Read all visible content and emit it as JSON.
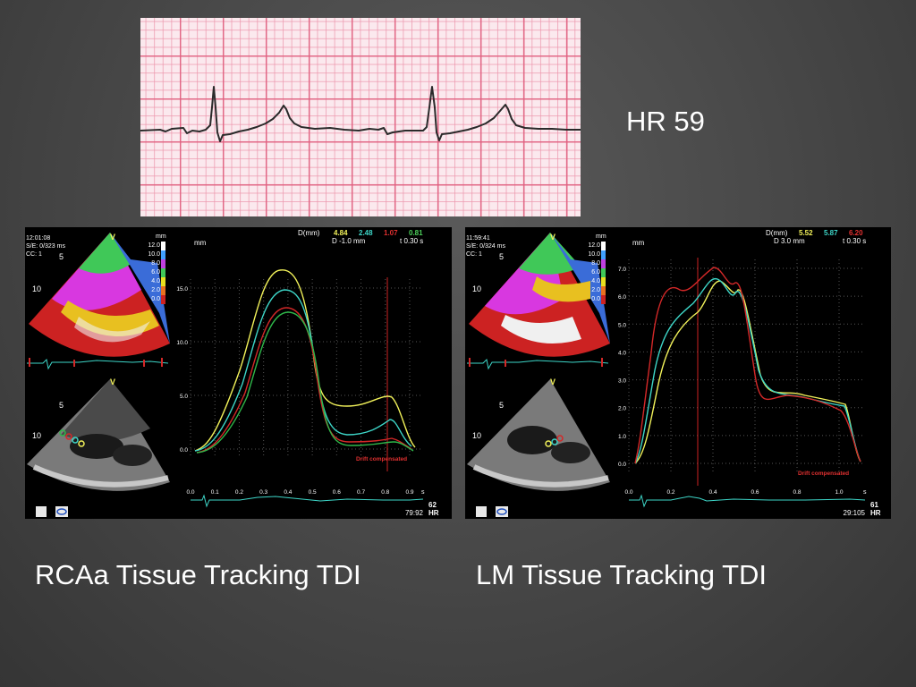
{
  "hr_label": "HR 59",
  "captions": {
    "left": "RCAa Tissue Tracking TDI",
    "right": "LM Tissue Tracking TDI"
  },
  "colors": {
    "background": "#4a4a4a",
    "ecg_paper": "#fbe9ee",
    "ecg_grid": "#e06080",
    "trace_yellow": "#f2f25a",
    "trace_cyan": "#3dd6c8",
    "trace_red": "#d42828",
    "trace_green": "#2fb84a"
  },
  "panels": [
    {
      "id": "rcaa",
      "time": "12:01:08",
      "se": "S/E: 0/323 ms",
      "cc": "CC: 1",
      "v_mark": "V",
      "depth_marks": [
        "5",
        "10"
      ],
      "color_scale_unit": "mm",
      "color_scale": [
        "12.0",
        "10.0",
        "8.0",
        "6.0",
        "4.0",
        "2.0",
        "0.0"
      ],
      "chart_unit": "mm",
      "d_label": "D(mm)",
      "d_values": [
        "4.84",
        "2.48",
        "1.07",
        "0.81"
      ],
      "d_value_colors": [
        "#f2f25a",
        "#3dd6c8",
        "#e03030",
        "#4ccf5a"
      ],
      "d_info": "D -1.0 mm",
      "t_info": "t 0.30 s",
      "drift": "Drift compensated",
      "y_ticks": [
        "15.0",
        "10.0",
        "5.0",
        "0.0"
      ],
      "x_ticks": [
        "0.0",
        "0.1",
        "0.2",
        "0.3",
        "0.4",
        "0.5",
        "0.6",
        "0.7",
        "0.8",
        "0.9"
      ],
      "x_unit": "s",
      "hr_value": "62",
      "hr_unit": "HR",
      "frame": "79:92"
    },
    {
      "id": "lm",
      "time": "11:59:41",
      "se": "S/E: 0/324 ms",
      "cc": "CC: 1",
      "v_mark": "V",
      "depth_marks": [
        "5",
        "10"
      ],
      "color_scale_unit": "mm",
      "color_scale": [
        "12.0",
        "10.0",
        "8.0",
        "6.0",
        "4.0",
        "2.0",
        "0.0"
      ],
      "chart_unit": "mm",
      "d_label": "D(mm)",
      "d_values": [
        "5.52",
        "5.87",
        "6.20"
      ],
      "d_value_colors": [
        "#f2f25a",
        "#3dd6c8",
        "#e03030"
      ],
      "d_info": "D 3.0 mm",
      "t_info": "t 0.30 s",
      "drift": "Drift compensated",
      "y_ticks": [
        "7.0",
        "6.0",
        "5.0",
        "4.0",
        "3.0",
        "2.0",
        "1.0",
        "0.0"
      ],
      "x_ticks": [
        "0.0",
        "0.2",
        "0.4",
        "0.6",
        "0.8",
        "1.0"
      ],
      "x_unit": "s",
      "hr_value": "61",
      "hr_unit": "HR",
      "frame": "29:105"
    }
  ]
}
